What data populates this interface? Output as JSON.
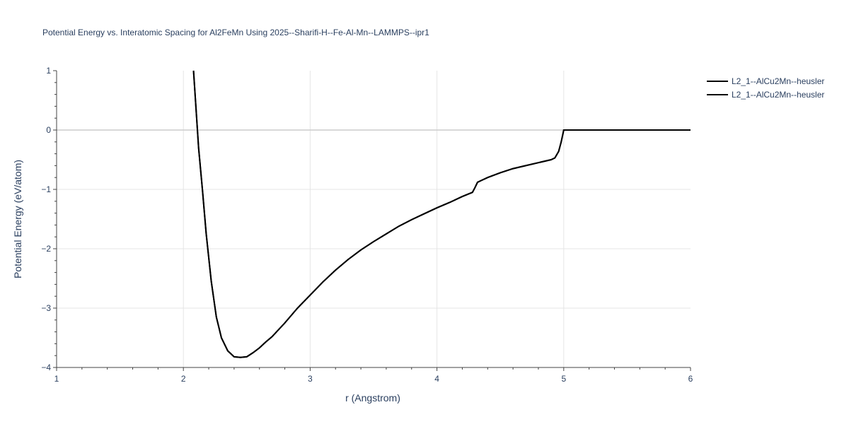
{
  "chart_data": {
    "type": "line",
    "title": "Potential Energy vs. Interatomic Spacing for Al2FeMn Using 2025--Sharifi-H--Fe-Al-Mn--LAMMPS--ipr1",
    "xlabel": "r (Angstrom)",
    "ylabel": "Potential Energy (eV/atom)",
    "xlim": [
      1,
      6
    ],
    "ylim": [
      -4,
      1
    ],
    "x_ticks": [
      1,
      2,
      3,
      4,
      5,
      6
    ],
    "y_ticks": [
      1,
      0,
      -1,
      -2,
      -3,
      -4
    ],
    "x_tick_labels": [
      "1",
      "2",
      "3",
      "4",
      "5",
      "6"
    ],
    "y_tick_labels": [
      "1",
      "0",
      "−1",
      "−2",
      "−3",
      "−4"
    ],
    "grid": true,
    "legend_position": "top-right",
    "series": [
      {
        "name": "L2_1--AlCu2Mn--heusler",
        "color": "#000000",
        "x": [
          2.08,
          2.1,
          2.12,
          2.15,
          2.18,
          2.22,
          2.26,
          2.3,
          2.35,
          2.4,
          2.45,
          2.5,
          2.55,
          2.6,
          2.65,
          2.7,
          2.8,
          2.9,
          3.0,
          3.1,
          3.2,
          3.3,
          3.4,
          3.5,
          3.6,
          3.7,
          3.8,
          3.9,
          4.0,
          4.1,
          4.2,
          4.28,
          4.3,
          4.32,
          4.35,
          4.4,
          4.5,
          4.6,
          4.7,
          4.8,
          4.9,
          4.93,
          4.96,
          4.98,
          5.0,
          5.2,
          5.5,
          5.8,
          6.0
        ],
        "y": [
          1.0,
          0.35,
          -0.3,
          -1.0,
          -1.75,
          -2.55,
          -3.15,
          -3.5,
          -3.72,
          -3.82,
          -3.83,
          -3.82,
          -3.75,
          -3.67,
          -3.57,
          -3.48,
          -3.25,
          -3.0,
          -2.78,
          -2.56,
          -2.36,
          -2.18,
          -2.02,
          -1.88,
          -1.75,
          -1.62,
          -1.51,
          -1.41,
          -1.31,
          -1.22,
          -1.12,
          -1.05,
          -0.97,
          -0.88,
          -0.85,
          -0.8,
          -0.72,
          -0.65,
          -0.6,
          -0.55,
          -0.5,
          -0.47,
          -0.36,
          -0.2,
          0.0,
          0.0,
          0.0,
          0.0,
          0.0
        ]
      },
      {
        "name": "L2_1--AlCu2Mn--heusler",
        "color": "#000000",
        "x": [
          2.08,
          2.1,
          2.12,
          2.15,
          2.18,
          2.22,
          2.26,
          2.3,
          2.35,
          2.4,
          2.45,
          2.5,
          2.55,
          2.6,
          2.65,
          2.7,
          2.8,
          2.9,
          3.0,
          3.1,
          3.2,
          3.3,
          3.4,
          3.5,
          3.6,
          3.7,
          3.8,
          3.9,
          4.0,
          4.1,
          4.2,
          4.28,
          4.3,
          4.32,
          4.35,
          4.4,
          4.5,
          4.6,
          4.7,
          4.8,
          4.9,
          4.93,
          4.96,
          4.98,
          5.0,
          5.2,
          5.5,
          5.8,
          6.0
        ],
        "y": [
          1.0,
          0.35,
          -0.3,
          -1.0,
          -1.75,
          -2.55,
          -3.15,
          -3.5,
          -3.72,
          -3.82,
          -3.83,
          -3.82,
          -3.75,
          -3.67,
          -3.57,
          -3.48,
          -3.25,
          -3.0,
          -2.78,
          -2.56,
          -2.36,
          -2.18,
          -2.02,
          -1.88,
          -1.75,
          -1.62,
          -1.51,
          -1.41,
          -1.31,
          -1.22,
          -1.12,
          -1.05,
          -0.97,
          -0.88,
          -0.85,
          -0.8,
          -0.72,
          -0.65,
          -0.6,
          -0.55,
          -0.5,
          -0.47,
          -0.36,
          -0.2,
          0.0,
          0.0,
          0.0,
          0.0,
          0.0
        ]
      }
    ]
  }
}
